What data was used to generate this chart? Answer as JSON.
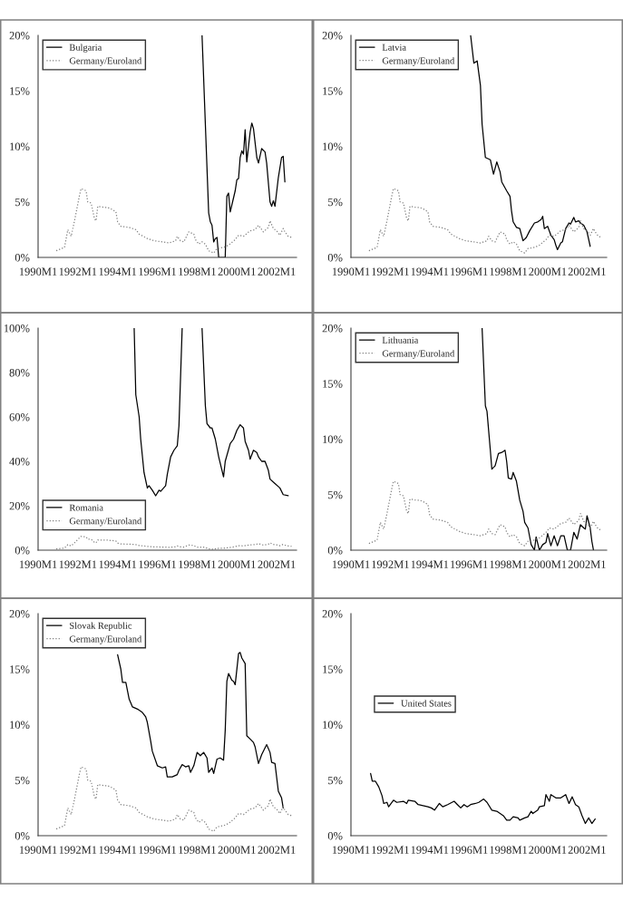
{
  "chart_data": [
    {
      "type": "line",
      "xlim": [
        "1990-01",
        "2003-01"
      ],
      "ylim": [
        0,
        20
      ],
      "legend": "top left",
      "xticks": [
        {
          "value": "1990-01",
          "label": "1990M1"
        },
        {
          "value": "1992-01",
          "label": "1992M1"
        },
        {
          "value": "1994-01",
          "label": "1994M1"
        },
        {
          "value": "1996-01",
          "label": "1996M1"
        },
        {
          "value": "1998-01",
          "label": "1998M1"
        },
        {
          "value": "2000-01",
          "label": "2000M1"
        },
        {
          "value": "2002-01",
          "label": "2002M1"
        }
      ],
      "yticks": [
        {
          "value": 0,
          "label": "0%"
        },
        {
          "value": 5,
          "label": "5%"
        },
        {
          "value": 10,
          "label": "10%"
        },
        {
          "value": 15,
          "label": "15%"
        },
        {
          "value": 20,
          "label": "20%"
        }
      ],
      "series": [
        {
          "name": "Bulgaria",
          "color": "#000000",
          "line_style": "solid",
          "x": [
            "1998-04",
            "1998-08",
            "1998-09",
            "1998-10",
            "1998-11",
            "1998-12",
            "1999-01",
            "1999-02",
            "1999-06",
            "1999-07",
            "1999-08",
            "1999-09",
            "1999-12",
            "2000-01",
            "2000-02",
            "2000-03",
            "2000-04",
            "2000-05",
            "2000-06",
            "2000-07",
            "2000-09",
            "2000-10",
            "2000-11",
            "2001-01",
            "2001-02",
            "2001-04",
            "2001-06",
            "2001-07",
            "2001-09",
            "2001-10",
            "2001-11",
            "2001-12",
            "2002-02",
            "2002-04",
            "2002-05",
            "2002-06"
          ],
          "values": [
            20,
            4.0,
            3.2,
            2.9,
            1.4,
            1.7,
            1.8,
            0,
            0,
            5.5,
            5.8,
            4.1,
            6.0,
            7.0,
            7.1,
            9.0,
            9.6,
            9.3,
            11.5,
            8.6,
            11.3,
            12.1,
            11.6,
            9.0,
            8.5,
            9.8,
            9.5,
            8.5,
            5.0,
            4.6,
            5.1,
            4.6,
            7.2,
            9.0,
            9.1,
            6.8
          ]
        },
        {
          "name": "Germany/Euroland",
          "color": "#808080",
          "line_style": "dotted",
          "x": [
            "1990-12",
            "1991-05",
            "1991-07",
            "1991-09",
            "1991-11",
            "1992-02",
            "1992-03",
            "1992-06",
            "1992-07",
            "1992-09",
            "1992-11",
            "1992-12",
            "1993-01",
            "1993-05",
            "1993-07",
            "1993-10",
            "1993-12",
            "1994-01",
            "1994-03",
            "1994-08",
            "1994-12",
            "1995-02",
            "1995-07",
            "1995-11",
            "1996-04",
            "1996-08",
            "1996-12",
            "1997-01",
            "1997-03",
            "1997-05",
            "1997-08",
            "1997-11",
            "1997-12",
            "1998-02",
            "1998-04",
            "1998-06",
            "1998-08",
            "1998-11",
            "1999-01",
            "1999-05",
            "1999-08",
            "1999-12",
            "2000-02",
            "2000-05",
            "2000-09",
            "2000-12",
            "2001-02",
            "2001-05",
            "2001-08",
            "2001-09",
            "2001-11",
            "2002-01",
            "2002-03",
            "2002-05",
            "2002-06",
            "2002-08",
            "2002-10"
          ],
          "values": [
            0.6,
            0.9,
            2.5,
            1.9,
            3.3,
            5.6,
            6.2,
            6.0,
            5.0,
            4.9,
            3.5,
            3.3,
            4.6,
            4.5,
            4.5,
            4.3,
            4.1,
            3.2,
            2.8,
            2.7,
            2.5,
            2.1,
            1.7,
            1.5,
            1.4,
            1.3,
            1.5,
            1.9,
            1.5,
            1.4,
            2.3,
            2.1,
            1.6,
            1.2,
            1.4,
            1.2,
            0.6,
            0.4,
            0.8,
            0.9,
            1.1,
            1.6,
            2.0,
            1.9,
            2.4,
            2.5,
            2.9,
            2.3,
            2.7,
            3.3,
            2.6,
            2.4,
            2.0,
            2.6,
            2.3,
            1.9,
            1.8
          ]
        }
      ]
    },
    {
      "type": "line",
      "xlim": [
        "1990-01",
        "2003-01"
      ],
      "ylim": [
        0,
        20
      ],
      "legend": "top left",
      "xticks": [
        {
          "value": "1990-01",
          "label": "1990M1"
        },
        {
          "value": "1992-01",
          "label": "1992M1"
        },
        {
          "value": "1994-01",
          "label": "1994M1"
        },
        {
          "value": "1996-01",
          "label": "1996M1"
        },
        {
          "value": "1998-01",
          "label": "1998M1"
        },
        {
          "value": "2000-01",
          "label": "2000M1"
        },
        {
          "value": "2002-01",
          "label": "2002M1"
        }
      ],
      "yticks": [
        {
          "value": 0,
          "label": "0%"
        },
        {
          "value": 5,
          "label": "5%"
        },
        {
          "value": 10,
          "label": "10%"
        },
        {
          "value": 15,
          "label": "15%"
        },
        {
          "value": 20,
          "label": "20%"
        }
      ],
      "series": [
        {
          "name": "Latvia",
          "color": "#000000",
          "line_style": "solid",
          "x": [
            "1996-02",
            "1996-04",
            "1996-06",
            "1996-08",
            "1996-09",
            "1996-11",
            "1997-02",
            "1997-04",
            "1997-06",
            "1997-08",
            "1997-09",
            "1997-12",
            "1998-02",
            "1998-03",
            "1998-04",
            "1998-06",
            "1998-08",
            "1998-10",
            "1998-12",
            "1999-02",
            "1999-05",
            "1999-07",
            "1999-09",
            "1999-10",
            "1999-11",
            "2000-01",
            "2000-03",
            "2000-05",
            "2000-06",
            "2000-07",
            "2000-09",
            "2000-10",
            "2000-12",
            "2001-02",
            "2001-03",
            "2001-05",
            "2001-06",
            "2001-08",
            "2001-09",
            "2001-11",
            "2002-01",
            "2002-03"
          ],
          "values": [
            20,
            17.5,
            17.7,
            15.5,
            12.0,
            9.0,
            8.8,
            7.5,
            8.6,
            7.7,
            6.8,
            6.0,
            5.5,
            4.2,
            3.2,
            2.7,
            2.6,
            1.5,
            1.8,
            2.4,
            3.1,
            3.2,
            3.4,
            3.7,
            2.6,
            2.8,
            2.0,
            1.6,
            1.1,
            0.7,
            1.3,
            1.4,
            2.6,
            3.1,
            3.0,
            3.6,
            3.2,
            3.3,
            3.1,
            2.9,
            2.3,
            1.0
          ]
        },
        {
          "name": "Germany/Euroland",
          "color": "#808080",
          "line_style": "dotted",
          "x": [
            "1990-12",
            "1991-05",
            "1991-07",
            "1991-09",
            "1991-11",
            "1992-02",
            "1992-03",
            "1992-06",
            "1992-07",
            "1992-09",
            "1992-11",
            "1992-12",
            "1993-01",
            "1993-05",
            "1993-07",
            "1993-10",
            "1993-12",
            "1994-01",
            "1994-03",
            "1994-08",
            "1994-12",
            "1995-02",
            "1995-07",
            "1995-11",
            "1996-04",
            "1996-08",
            "1996-12",
            "1997-01",
            "1997-03",
            "1997-05",
            "1997-08",
            "1997-11",
            "1997-12",
            "1998-02",
            "1998-04",
            "1998-06",
            "1998-08",
            "1998-11",
            "1999-01",
            "1999-05",
            "1999-08",
            "1999-12",
            "2000-02",
            "2000-05",
            "2000-09",
            "2000-12",
            "2001-02",
            "2001-05",
            "2001-08",
            "2001-09",
            "2001-11",
            "2002-01",
            "2002-03",
            "2002-05",
            "2002-06",
            "2002-08",
            "2002-10"
          ],
          "values": [
            0.6,
            0.9,
            2.5,
            1.9,
            3.3,
            5.6,
            6.2,
            6.0,
            5.0,
            4.9,
            3.5,
            3.3,
            4.6,
            4.5,
            4.5,
            4.3,
            4.1,
            3.2,
            2.8,
            2.7,
            2.5,
            2.1,
            1.7,
            1.5,
            1.4,
            1.3,
            1.5,
            1.9,
            1.5,
            1.4,
            2.3,
            2.1,
            1.6,
            1.2,
            1.4,
            1.2,
            0.6,
            0.4,
            0.8,
            0.9,
            1.1,
            1.6,
            2.0,
            1.9,
            2.4,
            2.5,
            2.9,
            2.3,
            2.7,
            3.3,
            2.6,
            2.4,
            2.0,
            2.6,
            2.3,
            1.9,
            1.8
          ]
        }
      ]
    },
    {
      "type": "line",
      "xlim": [
        "1990-01",
        "2003-01"
      ],
      "ylim": [
        0,
        100
      ],
      "legend": "bottom left",
      "xticks": [
        {
          "value": "1990-01",
          "label": "1990M1"
        },
        {
          "value": "1992-01",
          "label": "1992M1"
        },
        {
          "value": "1994-01",
          "label": "1994M1"
        },
        {
          "value": "1996-01",
          "label": "1996M1"
        },
        {
          "value": "1998-01",
          "label": "1998M1"
        },
        {
          "value": "2000-01",
          "label": "2000M1"
        },
        {
          "value": "2002-01",
          "label": "2002M1"
        }
      ],
      "yticks": [
        {
          "value": 0,
          "label": "0%"
        },
        {
          "value": 20,
          "label": "20%"
        },
        {
          "value": 40,
          "label": "40%"
        },
        {
          "value": 60,
          "label": "60%"
        },
        {
          "value": 80,
          "label": "80%"
        },
        {
          "value": 100,
          "label": "100%"
        }
      ],
      "series": [
        {
          "name": "Romania",
          "color": "#000000",
          "line_style": "solid",
          "x": [
            "1994-11",
            "1994-12",
            "1995-02",
            "1995-03",
            "1995-05",
            "1995-07",
            "1995-08",
            "1995-10",
            "1995-12",
            "1996-02",
            "1996-03",
            "1996-06",
            "1996-07",
            "1996-09",
            "1996-11",
            "1997-01",
            "1997-02",
            "1997-04",
            "1997-10",
            "1998-04",
            "1998-06",
            "1998-07",
            "1998-09",
            "1998-10",
            "1998-12",
            "1999-02",
            "1999-05",
            "1999-06",
            "1999-09",
            "1999-11",
            "2000-01",
            "2000-03",
            "2000-05",
            "2000-06",
            "2000-08",
            "2000-09",
            "2000-11",
            "2001-01",
            "2001-02",
            "2001-04",
            "2001-06",
            "2001-08",
            "2001-09",
            "2001-12",
            "2002-03",
            "2002-05",
            "2002-08"
          ],
          "values": [
            100,
            70,
            60,
            50,
            35,
            28,
            29,
            27,
            24.5,
            27,
            26.5,
            29,
            34,
            42,
            45,
            47,
            56,
            100,
            null,
            100,
            65,
            57,
            55,
            55,
            50,
            42,
            33,
            40,
            48,
            50,
            54,
            56.5,
            55,
            49,
            45,
            41,
            45,
            44,
            42,
            40,
            40,
            36,
            32,
            30,
            28,
            25,
            24.5
          ]
        },
        {
          "name": "Germany/Euroland",
          "color": "#808080",
          "line_style": "dotted",
          "x": [
            "1990-12",
            "1991-05",
            "1991-07",
            "1991-09",
            "1991-11",
            "1992-02",
            "1992-03",
            "1992-06",
            "1992-07",
            "1992-09",
            "1992-11",
            "1992-12",
            "1993-01",
            "1993-05",
            "1993-07",
            "1993-10",
            "1993-12",
            "1994-01",
            "1994-03",
            "1994-08",
            "1994-12",
            "1995-02",
            "1995-07",
            "1995-11",
            "1996-04",
            "1996-08",
            "1996-12",
            "1997-01",
            "1997-03",
            "1997-05",
            "1997-08",
            "1997-11",
            "1997-12",
            "1998-02",
            "1998-04",
            "1998-06",
            "1998-08",
            "1998-11",
            "1999-01",
            "1999-05",
            "1999-08",
            "1999-12",
            "2000-02",
            "2000-05",
            "2000-09",
            "2000-12",
            "2001-02",
            "2001-05",
            "2001-08",
            "2001-09",
            "2001-11",
            "2002-01",
            "2002-03",
            "2002-05",
            "2002-06",
            "2002-08",
            "2002-10"
          ],
          "values": [
            0.6,
            0.9,
            2.5,
            1.9,
            3.3,
            5.6,
            6.2,
            6.0,
            5.0,
            4.9,
            3.5,
            3.3,
            4.6,
            4.5,
            4.5,
            4.3,
            4.1,
            3.2,
            2.8,
            2.7,
            2.5,
            2.1,
            1.7,
            1.5,
            1.4,
            1.3,
            1.5,
            1.9,
            1.5,
            1.4,
            2.3,
            2.1,
            1.6,
            1.2,
            1.4,
            1.2,
            0.6,
            0.4,
            0.8,
            0.9,
            1.1,
            1.6,
            2.0,
            1.9,
            2.4,
            2.5,
            2.9,
            2.3,
            2.7,
            3.3,
            2.6,
            2.4,
            2.0,
            2.6,
            2.3,
            1.9,
            1.8
          ]
        }
      ]
    },
    {
      "type": "line",
      "xlim": [
        "1990-01",
        "2003-01"
      ],
      "ylim": [
        0,
        20
      ],
      "legend": "top left",
      "xticks": [
        {
          "value": "1990-01",
          "label": "1990M1"
        },
        {
          "value": "1992-01",
          "label": "1992M1"
        },
        {
          "value": "1994-01",
          "label": "1994M1"
        },
        {
          "value": "1996-01",
          "label": "1996M1"
        },
        {
          "value": "1998-01",
          "label": "1998M1"
        },
        {
          "value": "2000-01",
          "label": "2000M1"
        },
        {
          "value": "2002-01",
          "label": "2002M1"
        }
      ],
      "yticks": [
        {
          "value": 0,
          "label": "0%"
        },
        {
          "value": 5,
          "label": "5%"
        },
        {
          "value": 10,
          "label": "10%"
        },
        {
          "value": 15,
          "label": "15%"
        },
        {
          "value": 20,
          "label": "20%"
        }
      ],
      "series": [
        {
          "name": "Lithuania",
          "color": "#000000",
          "line_style": "solid",
          "x": [
            "1996-09",
            "1996-11",
            "1996-12",
            "1997-02",
            "1997-03",
            "1997-05",
            "1997-07",
            "1997-09",
            "1997-11",
            "1997-12",
            "1998-01",
            "1998-03",
            "1998-04",
            "1998-06",
            "1998-08",
            "1998-10",
            "1998-11",
            "1999-01",
            "1999-03",
            "1999-05",
            "1999-06",
            "1999-08",
            "1999-10",
            "1999-12",
            "2000-01",
            "2000-03",
            "2000-05",
            "2000-07",
            "2000-09",
            "2000-11",
            "2001-01",
            "2001-03",
            "2001-05",
            "2001-07",
            "2001-09",
            "2001-11",
            "2001-12",
            "2002-01",
            "2002-03",
            "2002-04",
            "2002-05"
          ],
          "values": [
            20,
            13.0,
            12.5,
            9.0,
            7.3,
            7.6,
            8.7,
            8.8,
            9.0,
            8.0,
            6.5,
            6.4,
            7.0,
            6.2,
            4.5,
            3.5,
            2.5,
            2.0,
            0.5,
            0,
            1.2,
            0,
            0.5,
            0.7,
            1.5,
            0.4,
            1.3,
            0.4,
            1.3,
            1.3,
            0,
            0,
            1.6,
            1.0,
            2.3,
            2.0,
            1.9,
            3.1,
            2.0,
            0.8,
            0
          ]
        },
        {
          "name": "Germany/Euroland",
          "color": "#808080",
          "line_style": "dotted",
          "x": [
            "1990-12",
            "1991-05",
            "1991-07",
            "1991-09",
            "1991-11",
            "1992-02",
            "1992-03",
            "1992-06",
            "1992-07",
            "1992-09",
            "1992-11",
            "1992-12",
            "1993-01",
            "1993-05",
            "1993-07",
            "1993-10",
            "1993-12",
            "1994-01",
            "1994-03",
            "1994-08",
            "1994-12",
            "1995-02",
            "1995-07",
            "1995-11",
            "1996-04",
            "1996-08",
            "1996-12",
            "1997-01",
            "1997-03",
            "1997-05",
            "1997-08",
            "1997-11",
            "1997-12",
            "1998-02",
            "1998-04",
            "1998-06",
            "1998-08",
            "1998-11",
            "1999-01",
            "1999-05",
            "1999-08",
            "1999-12",
            "2000-02",
            "2000-05",
            "2000-09",
            "2000-12",
            "2001-02",
            "2001-05",
            "2001-08",
            "2001-09",
            "2001-11",
            "2002-01",
            "2002-03",
            "2002-05",
            "2002-06",
            "2002-08",
            "2002-10"
          ],
          "values": [
            0.6,
            0.9,
            2.5,
            1.9,
            3.3,
            5.6,
            6.2,
            6.0,
            5.0,
            4.9,
            3.5,
            3.3,
            4.6,
            4.5,
            4.5,
            4.3,
            4.1,
            3.2,
            2.8,
            2.7,
            2.5,
            2.1,
            1.7,
            1.5,
            1.4,
            1.3,
            1.5,
            1.9,
            1.5,
            1.4,
            2.3,
            2.1,
            1.6,
            1.2,
            1.4,
            1.2,
            0.6,
            0.4,
            0.8,
            0.9,
            1.1,
            1.6,
            2.0,
            1.9,
            2.4,
            2.5,
            2.9,
            2.3,
            2.7,
            3.3,
            2.6,
            2.4,
            2.0,
            2.6,
            2.3,
            1.9,
            1.8
          ]
        }
      ]
    },
    {
      "type": "line",
      "xlim": [
        "1990-01",
        "2003-01"
      ],
      "ylim": [
        0,
        20
      ],
      "legend": "top left",
      "xticks": [
        {
          "value": "1990-01",
          "label": "1990M1"
        },
        {
          "value": "1992-01",
          "label": "1992M1"
        },
        {
          "value": "1994-01",
          "label": "1994M1"
        },
        {
          "value": "1996-01",
          "label": "1996M1"
        },
        {
          "value": "1998-01",
          "label": "1998M1"
        },
        {
          "value": "2000-01",
          "label": "2000M1"
        },
        {
          "value": "2002-01",
          "label": "2002M1"
        }
      ],
      "yticks": [
        {
          "value": 0,
          "label": "0%"
        },
        {
          "value": 5,
          "label": "5%"
        },
        {
          "value": 10,
          "label": "10%"
        },
        {
          "value": 15,
          "label": "15%"
        },
        {
          "value": 20,
          "label": "20%"
        }
      ],
      "series": [
        {
          "name": "Slovak Republic",
          "color": "#000000",
          "line_style": "solid",
          "x": [
            "1994-01",
            "1994-03",
            "1994-04",
            "1994-06",
            "1994-08",
            "1994-10",
            "1995-01",
            "1995-04",
            "1995-06",
            "1995-07",
            "1995-09",
            "1995-10",
            "1996-01",
            "1996-04",
            "1996-06",
            "1996-07",
            "1996-10",
            "1997-01",
            "1997-02",
            "1997-04",
            "1997-06",
            "1997-08",
            "1997-09",
            "1997-11",
            "1998-01",
            "1998-03",
            "1998-05",
            "1998-07",
            "1998-08",
            "1998-10",
            "1998-11",
            "1999-01",
            "1999-03",
            "1999-05",
            "1999-06",
            "1999-07",
            "1999-08",
            "1999-10",
            "1999-11",
            "1999-12",
            "2000-02",
            "2000-03",
            "2000-04",
            "2000-06",
            "2000-07",
            "2000-09",
            "2000-11",
            "2000-12",
            "2001-02",
            "2001-04",
            "2001-07",
            "2001-09",
            "2001-10",
            "2001-12",
            "2002-02",
            "2002-04",
            "2002-05"
          ],
          "values": [
            16.3,
            15.0,
            13.8,
            13.8,
            12.3,
            11.6,
            11.4,
            11.1,
            10.7,
            10.2,
            8.5,
            7.6,
            6.3,
            6.1,
            6.2,
            5.3,
            5.3,
            5.5,
            5.9,
            6.4,
            6.2,
            6.3,
            5.7,
            6.3,
            7.5,
            7.2,
            7.5,
            7.0,
            5.7,
            6.1,
            5.6,
            6.9,
            7.0,
            6.8,
            9.5,
            13.9,
            14.6,
            14.0,
            13.9,
            13.6,
            16.4,
            16.5,
            16.0,
            15.5,
            9.0,
            8.7,
            8.4,
            8.0,
            6.5,
            7.3,
            8.2,
            7.5,
            6.6,
            6.5,
            4.0,
            3.4,
            2.5
          ]
        },
        {
          "name": "Germany/Euroland",
          "color": "#808080",
          "line_style": "dotted",
          "x": [
            "1990-12",
            "1991-05",
            "1991-07",
            "1991-09",
            "1991-11",
            "1992-02",
            "1992-03",
            "1992-06",
            "1992-07",
            "1992-09",
            "1992-11",
            "1992-12",
            "1993-01",
            "1993-05",
            "1993-07",
            "1993-10",
            "1993-12",
            "1994-01",
            "1994-03",
            "1994-08",
            "1994-12",
            "1995-02",
            "1995-07",
            "1995-11",
            "1996-04",
            "1996-08",
            "1996-12",
            "1997-01",
            "1997-03",
            "1997-05",
            "1997-08",
            "1997-11",
            "1997-12",
            "1998-02",
            "1998-04",
            "1998-06",
            "1998-08",
            "1998-11",
            "1999-01",
            "1999-05",
            "1999-08",
            "1999-12",
            "2000-02",
            "2000-05",
            "2000-09",
            "2000-12",
            "2001-02",
            "2001-05",
            "2001-08",
            "2001-09",
            "2001-11",
            "2002-01",
            "2002-03",
            "2002-05",
            "2002-06",
            "2002-08",
            "2002-10"
          ],
          "values": [
            0.6,
            0.9,
            2.5,
            1.9,
            3.3,
            5.6,
            6.2,
            6.0,
            5.0,
            4.9,
            3.5,
            3.3,
            4.6,
            4.5,
            4.5,
            4.3,
            4.1,
            3.2,
            2.8,
            2.7,
            2.5,
            2.1,
            1.7,
            1.5,
            1.4,
            1.3,
            1.5,
            1.9,
            1.5,
            1.4,
            2.3,
            2.1,
            1.6,
            1.2,
            1.4,
            1.2,
            0.6,
            0.4,
            0.8,
            0.9,
            1.1,
            1.6,
            2.0,
            1.9,
            2.4,
            2.5,
            2.9,
            2.3,
            2.7,
            3.3,
            2.6,
            2.4,
            2.0,
            2.6,
            2.3,
            1.9,
            1.8
          ]
        }
      ]
    },
    {
      "type": "line",
      "xlim": [
        "1990-01",
        "2003-01"
      ],
      "ylim": [
        0,
        20
      ],
      "legend": "top",
      "xticks": [
        {
          "value": "1990-01",
          "label": "1990M1"
        },
        {
          "value": "1992-01",
          "label": "1992M1"
        },
        {
          "value": "1994-01",
          "label": "1994M1"
        },
        {
          "value": "1996-01",
          "label": "1996M1"
        },
        {
          "value": "1998-01",
          "label": "1998M1"
        },
        {
          "value": "2000-01",
          "label": "2000M1"
        },
        {
          "value": "2002-01",
          "label": "2002M1"
        }
      ],
      "yticks": [
        {
          "value": 0,
          "label": "0%"
        },
        {
          "value": 5,
          "label": "5%"
        },
        {
          "value": 10,
          "label": "10%"
        },
        {
          "value": 15,
          "label": "15%"
        },
        {
          "value": 20,
          "label": "20%"
        }
      ],
      "series": [
        {
          "name": "United States",
          "color": "#000000",
          "line_style": "solid",
          "x": [
            "1991-01",
            "1991-02",
            "1991-04",
            "1991-06",
            "1991-08",
            "1991-09",
            "1991-11",
            "1991-12",
            "1992-03",
            "1992-05",
            "1992-09",
            "1992-11",
            "1992-12",
            "1993-04",
            "1993-06",
            "1993-09",
            "1993-12",
            "1994-02",
            "1994-04",
            "1994-07",
            "1994-09",
            "1994-12",
            "1995-04",
            "1995-06",
            "1995-08",
            "1995-10",
            "1995-12",
            "1996-02",
            "1996-05",
            "1996-07",
            "1996-10",
            "1996-12",
            "1997-03",
            "1997-06",
            "1997-10",
            "1997-12",
            "1998-02",
            "1998-04",
            "1998-07",
            "1998-08",
            "1998-11",
            "1999-01",
            "1999-03",
            "1999-04",
            "1999-07",
            "1999-08",
            "1999-11",
            "1999-12",
            "2000-02",
            "2000-03",
            "2000-06",
            "2000-09",
            "2000-12",
            "2001-02",
            "2001-04",
            "2001-06",
            "2001-08",
            "2001-10",
            "2001-12",
            "2002-02",
            "2002-04",
            "2002-06"
          ],
          "values": [
            5.6,
            4.9,
            4.9,
            4.4,
            3.6,
            2.9,
            3.0,
            2.6,
            3.2,
            3.0,
            3.1,
            2.9,
            3.2,
            3.1,
            2.8,
            2.7,
            2.6,
            2.5,
            2.3,
            2.9,
            2.6,
            2.8,
            3.1,
            2.8,
            2.5,
            2.8,
            2.6,
            2.8,
            2.9,
            3.0,
            3.3,
            3.0,
            2.3,
            2.2,
            1.8,
            1.4,
            1.4,
            1.7,
            1.6,
            1.4,
            1.6,
            1.7,
            2.2,
            2.0,
            2.3,
            2.6,
            2.7,
            3.7,
            3.1,
            3.7,
            3.4,
            3.4,
            3.7,
            2.9,
            3.5,
            2.8,
            2.6,
            1.8,
            1.1,
            1.6,
            1.1,
            1.5
          ]
        }
      ]
    }
  ]
}
